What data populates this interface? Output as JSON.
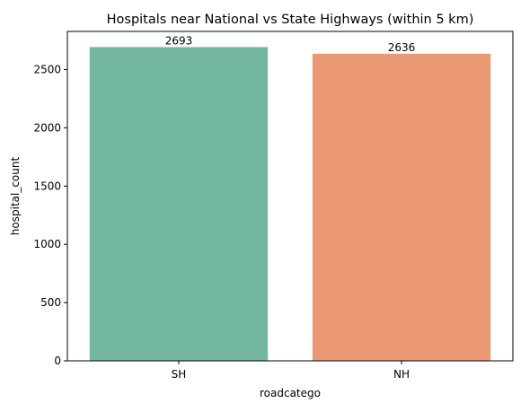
{
  "chart_data": {
    "type": "bar",
    "title": "Hospitals near National vs State Highways (within 5 km)",
    "xlabel": "roadcatego",
    "ylabel": "hospital_count",
    "categories": [
      "SH",
      "NH"
    ],
    "values": [
      2693,
      2636
    ],
    "data_labels": [
      "2693",
      "2636"
    ],
    "bar_colors": [
      "#73b6a2",
      "#ea9974"
    ],
    "ylim": [
      0,
      2827.65
    ],
    "yticks": [
      0,
      500,
      1000,
      1500,
      2000,
      2500
    ],
    "ytick_labels": [
      "0",
      "500",
      "1000",
      "1500",
      "2000",
      "2500"
    ],
    "grid": false,
    "legend": "none"
  }
}
